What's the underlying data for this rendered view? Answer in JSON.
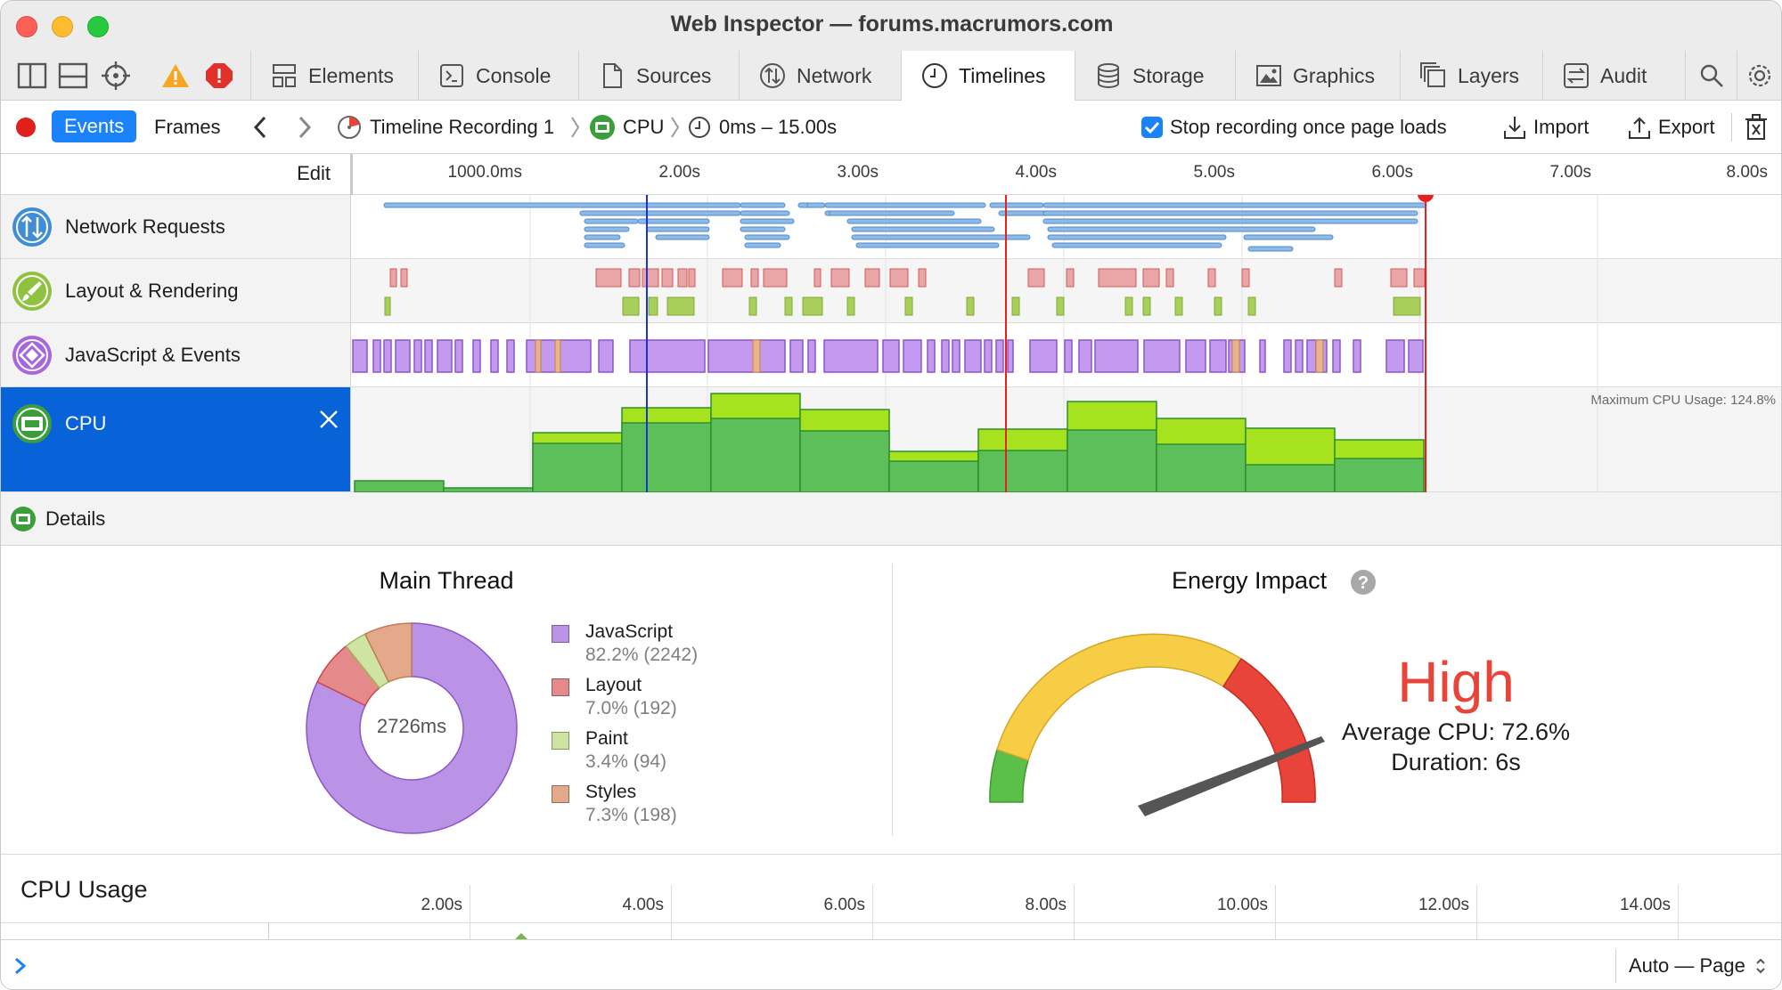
{
  "window": {
    "title": "Web Inspector — forums.macrumors.com"
  },
  "tabs": [
    {
      "label": "Elements",
      "icon": "elements-icon"
    },
    {
      "label": "Console",
      "icon": "console-icon"
    },
    {
      "label": "Sources",
      "icon": "sources-icon"
    },
    {
      "label": "Network",
      "icon": "network-icon"
    },
    {
      "label": "Timelines",
      "icon": "timelines-icon",
      "active": true
    },
    {
      "label": "Storage",
      "icon": "storage-icon"
    },
    {
      "label": "Graphics",
      "icon": "graphics-icon"
    },
    {
      "label": "Layers",
      "icon": "layers-icon"
    },
    {
      "label": "Audit",
      "icon": "audit-icon"
    }
  ],
  "toolbar": {
    "events_label": "Events",
    "frames_label": "Frames",
    "breadcrumb": {
      "recording": "Timeline Recording 1",
      "timeline": "CPU",
      "range": "0ms – 15.00s"
    },
    "stop_recording_label": "Stop recording once page loads",
    "stop_recording_checked": true,
    "import_label": "Import",
    "export_label": "Export"
  },
  "ruler": {
    "edit_label": "Edit",
    "ticks": [
      "1000.0ms",
      "2.00s",
      "3.00s",
      "4.00s",
      "5.00s",
      "6.00s",
      "7.00s",
      "8.00s"
    ]
  },
  "timelines": [
    {
      "label": "Network Requests",
      "icon": "network-requests-icon",
      "color": "#3f8dd6"
    },
    {
      "label": "Layout & Rendering",
      "icon": "layout-rendering-icon",
      "color": "#8fc23f"
    },
    {
      "label": "JavaScript & Events",
      "icon": "javascript-events-icon",
      "color": "#a866dd"
    },
    {
      "label": "CPU",
      "icon": "cpu-icon",
      "color": "#4caf3a",
      "selected": true
    }
  ],
  "cpu_overview": {
    "max_label": "Maximum CPU Usage: 124.8%"
  },
  "details": {
    "label": "Details"
  },
  "main_thread": {
    "title": "Main Thread",
    "total": "2726ms",
    "legend": [
      {
        "name": "JavaScript",
        "value": "82.2% (2242)",
        "color": "#bb93e6"
      },
      {
        "name": "Layout",
        "value": "7.0% (192)",
        "color": "#e58a8a"
      },
      {
        "name": "Paint",
        "value": "3.4% (94)",
        "color": "#cfe3a2"
      },
      {
        "name": "Styles",
        "value": "7.3% (198)",
        "color": "#e3a98a"
      }
    ]
  },
  "energy": {
    "title": "Energy Impact",
    "level": "High",
    "avg_cpu": "Average CPU: 72.6%",
    "duration": "Duration: 6s",
    "level_color": "#e8443a"
  },
  "cpu_usage": {
    "title": "CPU Usage",
    "ticks": [
      "2.00s",
      "4.00s",
      "6.00s",
      "8.00s",
      "10.00s",
      "12.00s",
      "14.00s"
    ]
  },
  "footer": {
    "context": "Auto — Page"
  },
  "chart_data": {
    "type": "pie",
    "title": "Main Thread",
    "categories": [
      "JavaScript",
      "Layout",
      "Paint",
      "Styles"
    ],
    "values": [
      82.2,
      7.0,
      3.4,
      7.3
    ],
    "counts": [
      2242,
      192,
      94,
      198
    ],
    "center_label": "2726ms"
  }
}
